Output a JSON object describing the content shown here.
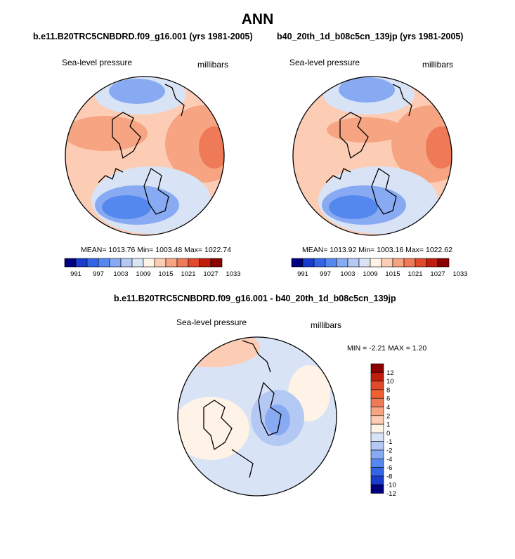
{
  "figure": {
    "title": "ANN",
    "panels": [
      {
        "case_title": "b.e11.B20TRC5CNBDRD.f09_g16.001 (yrs 1981-2005)",
        "variable_label": "Sea-level pressure",
        "units_label": "millibars",
        "stats": "MEAN= 1013.76  Min= 1003.48  Max= 1022.74"
      },
      {
        "case_title": "b40_20th_1d_b08c5cn_139jp (yrs 1981-2005)",
        "variable_label": "Sea-level pressure",
        "units_label": "millibars",
        "stats": "MEAN= 1013.92  Min= 1003.16  Max= 1022.62"
      }
    ],
    "difference": {
      "title": "b.e11.B20TRC5CNBDRD.f09_g16.001 - b40_20th_1d_b08c5cn_139jp",
      "variable_label": "Sea-level pressure",
      "units_label": "millibars",
      "stats": "MIN =  -2.21 MAX =   1.20"
    }
  },
  "chart_data": [
    {
      "type": "heatmap",
      "projection": "polar-stereographic (north pole)",
      "variable": "Sea-level pressure",
      "units": "millibars",
      "mean": 1013.76,
      "min": 1003.48,
      "max": 1022.74,
      "legend": {
        "placement": "bottom",
        "orientation": "horizontal",
        "colors": [
          "#00007f",
          "#1a3ccc",
          "#3366e6",
          "#5588ee",
          "#88aaf2",
          "#b4c8f4",
          "#d8e4f6",
          "#fff2e6",
          "#fccdb4",
          "#f6a482",
          "#ee7a57",
          "#e0492c",
          "#c01d0c",
          "#8a0000"
        ],
        "tick_labels": [
          "991",
          "997",
          "1003",
          "1009",
          "1015",
          "1021",
          "1027",
          "1033"
        ]
      }
    },
    {
      "type": "heatmap",
      "projection": "polar-stereographic (north pole)",
      "variable": "Sea-level pressure",
      "units": "millibars",
      "mean": 1013.92,
      "min": 1003.16,
      "max": 1022.62,
      "legend": {
        "placement": "bottom",
        "orientation": "horizontal",
        "colors": [
          "#00007f",
          "#1a3ccc",
          "#3366e6",
          "#5588ee",
          "#88aaf2",
          "#b4c8f4",
          "#d8e4f6",
          "#fff2e6",
          "#fccdb4",
          "#f6a482",
          "#ee7a57",
          "#e0492c",
          "#c01d0c",
          "#8a0000"
        ],
        "tick_labels": [
          "991",
          "997",
          "1003",
          "1009",
          "1015",
          "1021",
          "1027",
          "1033"
        ]
      }
    },
    {
      "type": "heatmap",
      "projection": "polar-stereographic (north pole)",
      "variable": "Sea-level pressure",
      "units": "millibars",
      "min": -2.21,
      "max": 1.2,
      "legend": {
        "placement": "right",
        "orientation": "vertical",
        "colors": [
          "#8a0000",
          "#c01d0c",
          "#e0492c",
          "#f06030",
          "#ee7a57",
          "#f6a482",
          "#fccdb4",
          "#fff2e6",
          "#d8e4f6",
          "#b4c8f4",
          "#88aaf2",
          "#5588ee",
          "#3366e6",
          "#1a3ccc",
          "#00007f"
        ],
        "tick_labels": [
          "12",
          "10",
          "8",
          "6",
          "4",
          "2",
          "1",
          "0",
          "-1",
          "-2",
          "-4",
          "-6",
          "-8",
          "-10",
          "-12"
        ]
      }
    }
  ]
}
